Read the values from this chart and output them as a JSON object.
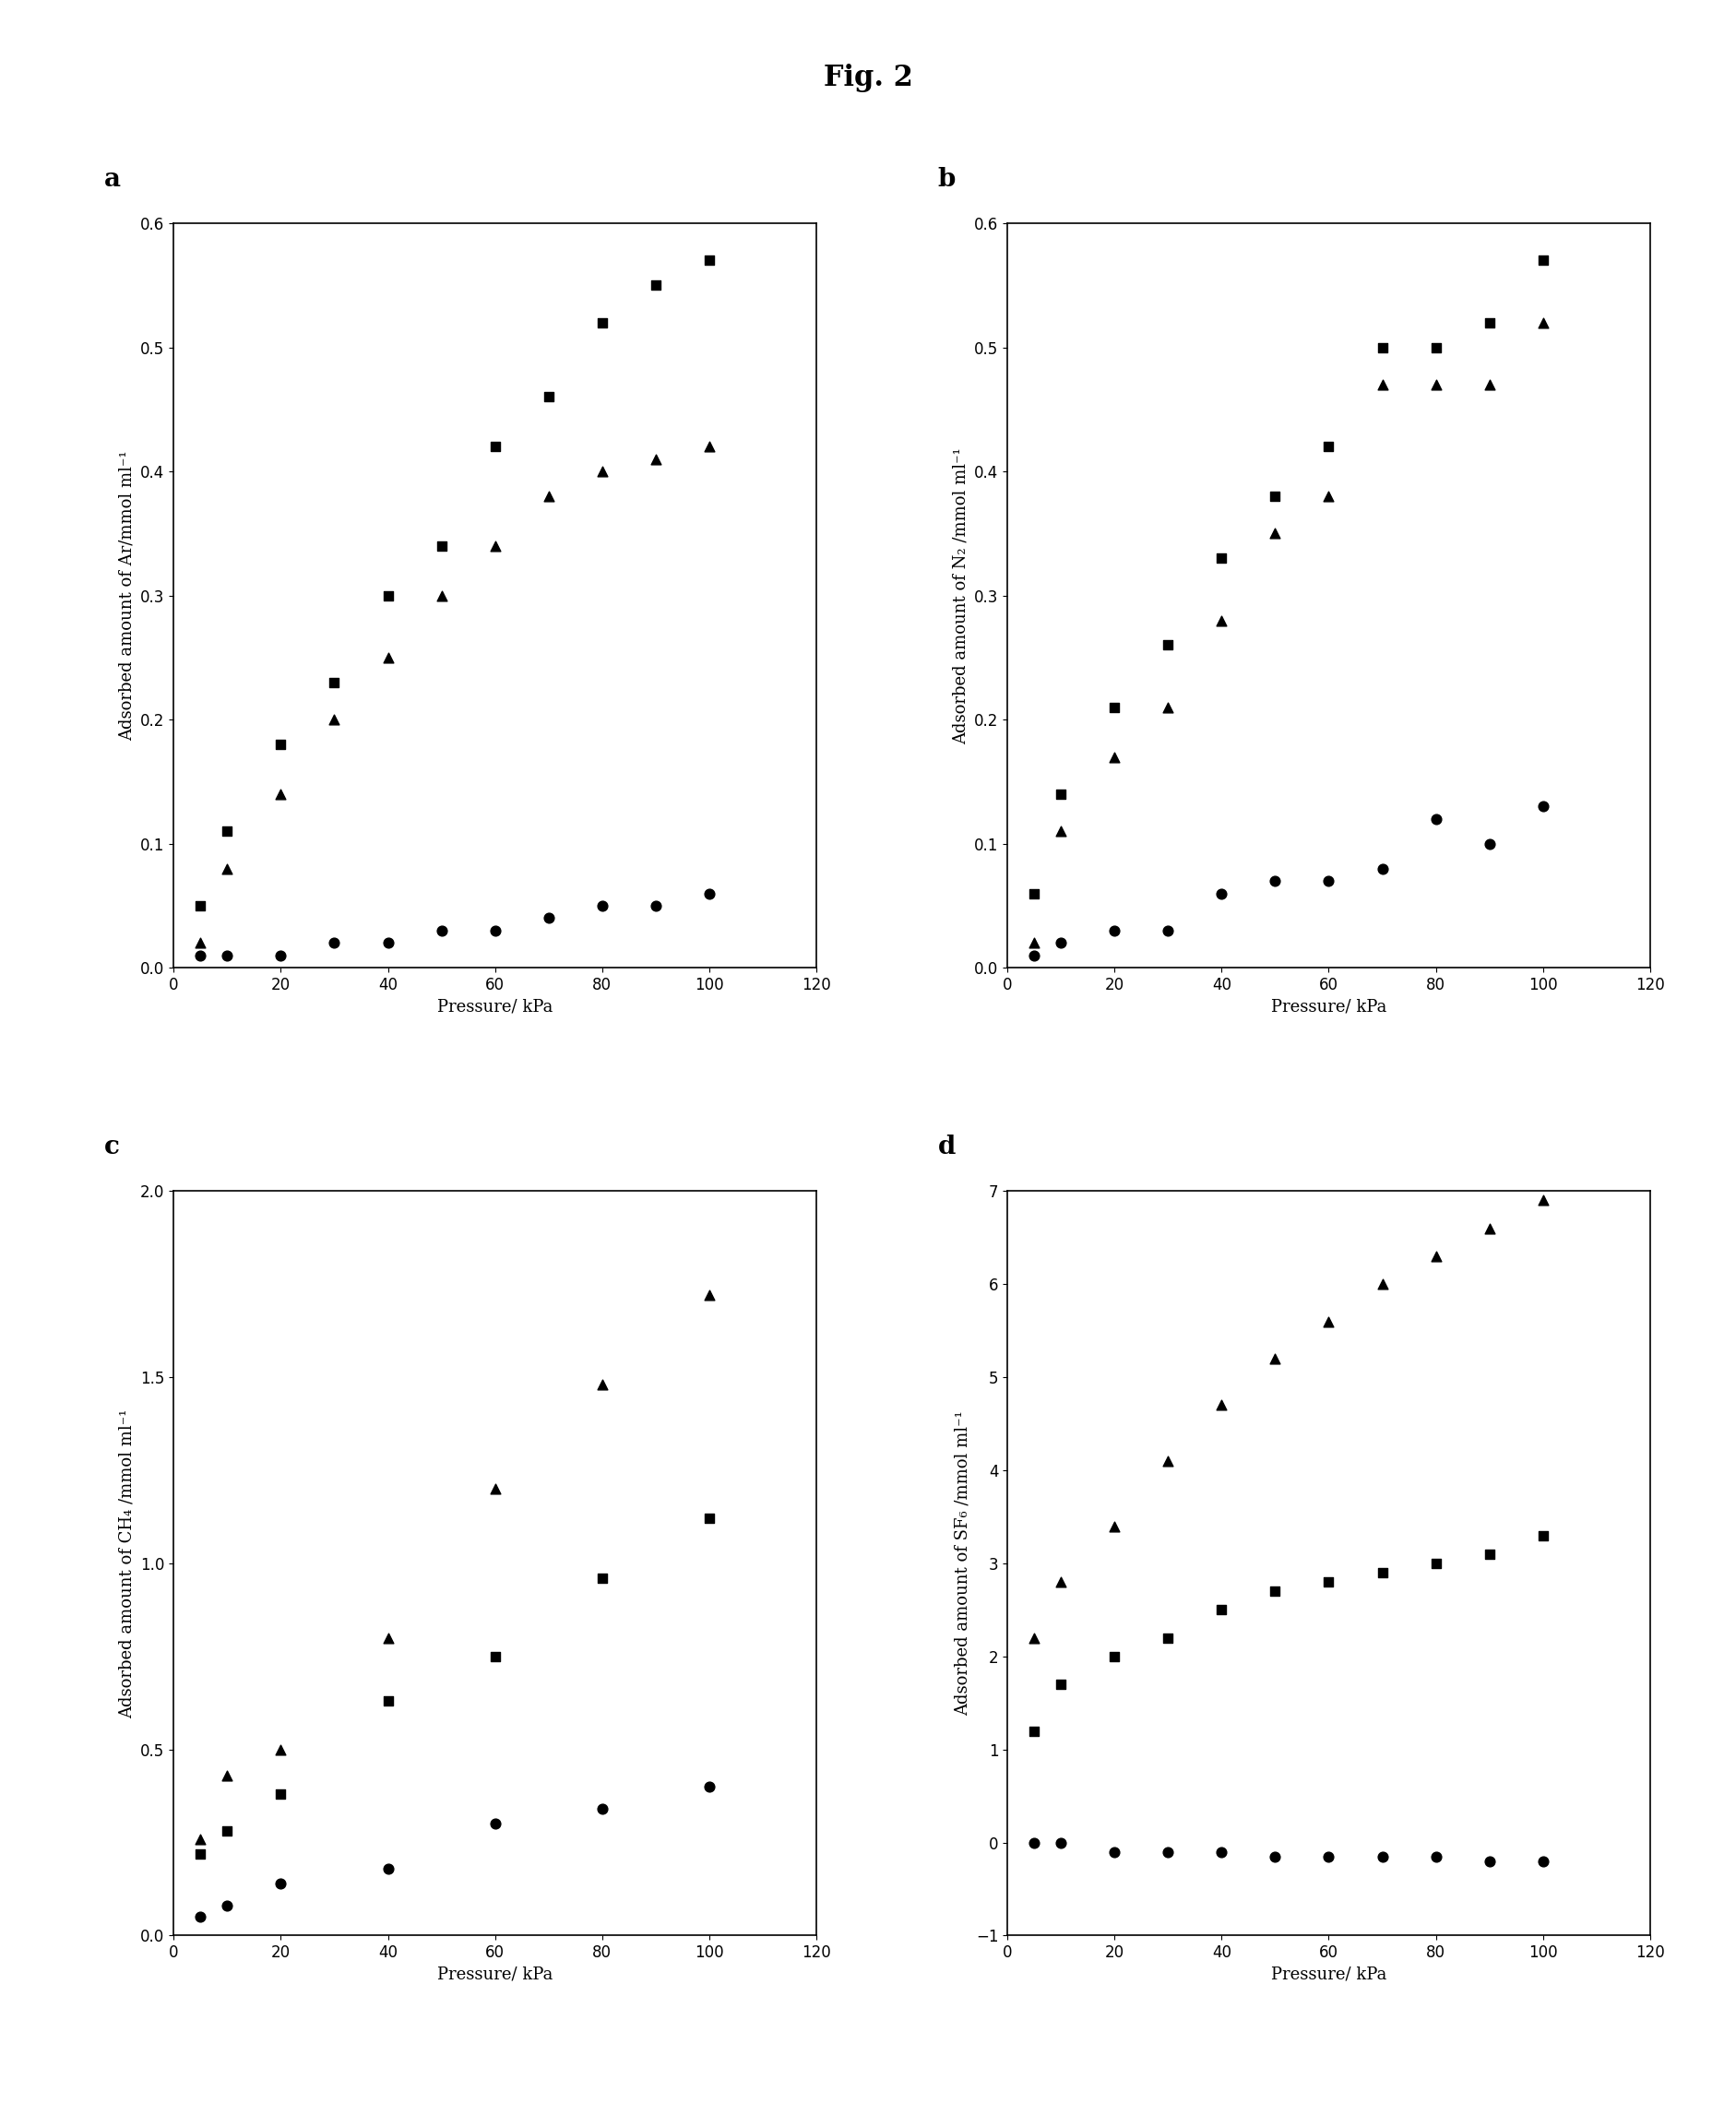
{
  "title": "Fig. 2",
  "subplots": [
    "a",
    "b",
    "c",
    "d"
  ],
  "panel_a": {
    "ylabel": "Adsorbed amount of Ar/mmol ml⁻¹",
    "xlabel": "Pressure/ kPa",
    "ylim": [
      0,
      0.6
    ],
    "xlim": [
      0,
      120
    ],
    "yticks": [
      0,
      0.1,
      0.2,
      0.3,
      0.4,
      0.5,
      0.6
    ],
    "xticks": [
      0,
      20,
      40,
      60,
      80,
      100,
      120
    ],
    "series": {
      "squares": {
        "x": [
          5,
          10,
          20,
          30,
          40,
          50,
          60,
          70,
          80,
          90,
          100
        ],
        "y": [
          0.05,
          0.11,
          0.18,
          0.23,
          0.3,
          0.34,
          0.42,
          0.46,
          0.52,
          0.55,
          0.57
        ]
      },
      "triangles": {
        "x": [
          5,
          10,
          20,
          30,
          40,
          50,
          60,
          70,
          80,
          90,
          100
        ],
        "y": [
          0.02,
          0.08,
          0.14,
          0.2,
          0.25,
          0.3,
          0.34,
          0.38,
          0.4,
          0.41,
          0.42
        ]
      },
      "circles": {
        "x": [
          5,
          10,
          20,
          30,
          40,
          50,
          60,
          70,
          80,
          90,
          100
        ],
        "y": [
          0.01,
          0.01,
          0.01,
          0.02,
          0.02,
          0.03,
          0.03,
          0.04,
          0.05,
          0.05,
          0.06
        ]
      }
    }
  },
  "panel_b": {
    "ylabel": "Adsorbed amount of N₂ /mmol ml⁻¹",
    "xlabel": "Pressure/ kPa",
    "ylim": [
      0,
      0.6
    ],
    "xlim": [
      0,
      120
    ],
    "yticks": [
      0,
      0.1,
      0.2,
      0.3,
      0.4,
      0.5,
      0.6
    ],
    "xticks": [
      0,
      20,
      40,
      60,
      80,
      100,
      120
    ],
    "series": {
      "squares": {
        "x": [
          5,
          10,
          20,
          30,
          40,
          50,
          60,
          70,
          80,
          90,
          100
        ],
        "y": [
          0.06,
          0.14,
          0.21,
          0.26,
          0.33,
          0.38,
          0.42,
          0.5,
          0.5,
          0.52,
          0.57
        ]
      },
      "triangles": {
        "x": [
          5,
          10,
          20,
          30,
          40,
          50,
          60,
          70,
          80,
          90,
          100
        ],
        "y": [
          0.02,
          0.11,
          0.17,
          0.21,
          0.28,
          0.35,
          0.38,
          0.47,
          0.47,
          0.47,
          0.52
        ]
      },
      "circles": {
        "x": [
          5,
          10,
          20,
          30,
          40,
          50,
          60,
          70,
          80,
          90,
          100
        ],
        "y": [
          0.01,
          0.02,
          0.03,
          0.03,
          0.06,
          0.07,
          0.07,
          0.08,
          0.12,
          0.1,
          0.13
        ]
      }
    }
  },
  "panel_c": {
    "ylabel": "Adsorbed amount of CH₄ /mmol ml⁻¹",
    "xlabel": "Pressure/ kPa",
    "ylim": [
      0,
      2.0
    ],
    "xlim": [
      0,
      120
    ],
    "yticks": [
      0,
      0.5,
      1.0,
      1.5,
      2.0
    ],
    "xticks": [
      0,
      20,
      40,
      60,
      80,
      100,
      120
    ],
    "series": {
      "squares": {
        "x": [
          5,
          10,
          20,
          40,
          60,
          80,
          100
        ],
        "y": [
          0.22,
          0.28,
          0.38,
          0.63,
          0.75,
          0.96,
          1.12
        ]
      },
      "triangles": {
        "x": [
          5,
          10,
          20,
          40,
          60,
          80,
          100
        ],
        "y": [
          0.26,
          0.43,
          0.5,
          0.8,
          1.2,
          1.48,
          1.72
        ]
      },
      "circles": {
        "x": [
          5,
          10,
          20,
          40,
          60,
          80,
          100
        ],
        "y": [
          0.05,
          0.08,
          0.14,
          0.18,
          0.3,
          0.34,
          0.4
        ]
      }
    }
  },
  "panel_d": {
    "ylabel": "Adsorbed amount of SF₆ /mmol ml⁻¹",
    "xlabel": "Pressure/ kPa",
    "ylim": [
      -1,
      7
    ],
    "xlim": [
      0,
      120
    ],
    "yticks": [
      -1,
      0,
      1,
      2,
      3,
      4,
      5,
      6,
      7
    ],
    "xticks": [
      0,
      20,
      40,
      60,
      80,
      100,
      120
    ],
    "series": {
      "squares": {
        "x": [
          5,
          10,
          20,
          30,
          40,
          50,
          60,
          70,
          80,
          90,
          100
        ],
        "y": [
          1.2,
          1.7,
          2.0,
          2.2,
          2.5,
          2.7,
          2.8,
          2.9,
          3.0,
          3.1,
          3.3
        ]
      },
      "triangles": {
        "x": [
          5,
          10,
          20,
          30,
          40,
          50,
          60,
          70,
          80,
          90,
          100
        ],
        "y": [
          2.2,
          2.8,
          3.4,
          4.1,
          4.7,
          5.2,
          5.6,
          6.0,
          6.3,
          6.6,
          6.9
        ]
      },
      "circles": {
        "x": [
          5,
          10,
          20,
          30,
          40,
          50,
          60,
          70,
          80,
          90,
          100
        ],
        "y": [
          0.0,
          0.0,
          -0.1,
          -0.1,
          -0.1,
          -0.15,
          -0.15,
          -0.15,
          -0.15,
          -0.2,
          -0.2
        ]
      }
    }
  },
  "marker_size": 60,
  "marker_color": "black",
  "bg_color": "white",
  "label_fontsize": 13,
  "tick_fontsize": 12,
  "title_fontsize": 22,
  "panel_label_fontsize": 20
}
